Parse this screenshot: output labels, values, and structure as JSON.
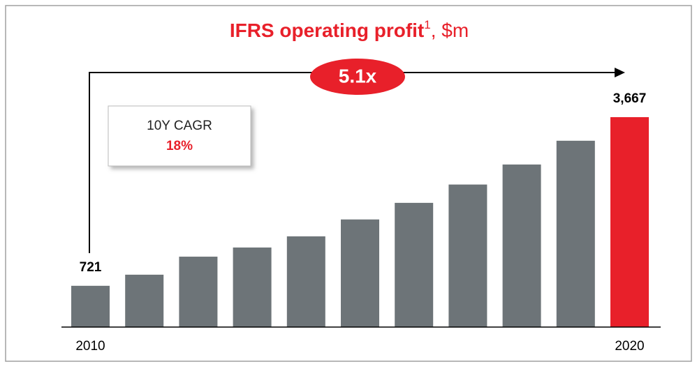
{
  "chart_data": {
    "type": "bar",
    "title": "IFRS operating profit",
    "title_superscript": "1",
    "title_suffix": ", $m",
    "categories": [
      "2010",
      null,
      null,
      null,
      null,
      null,
      null,
      null,
      null,
      null,
      "2020"
    ],
    "values": [
      721,
      915,
      1230,
      1390,
      1585,
      1880,
      2170,
      2490,
      2840,
      3255,
      3667
    ],
    "value_labels": [
      "721",
      null,
      null,
      null,
      null,
      null,
      null,
      null,
      null,
      null,
      "3,667"
    ],
    "colors": [
      "#6d7478",
      "#6d7478",
      "#6d7478",
      "#6d7478",
      "#6d7478",
      "#6d7478",
      "#6d7478",
      "#6d7478",
      "#6d7478",
      "#6d7478",
      "#e8202a"
    ],
    "annotations": {
      "multiple": "5.1x",
      "cagr_label": "10Y CAGR",
      "cagr_value": "18%"
    }
  }
}
